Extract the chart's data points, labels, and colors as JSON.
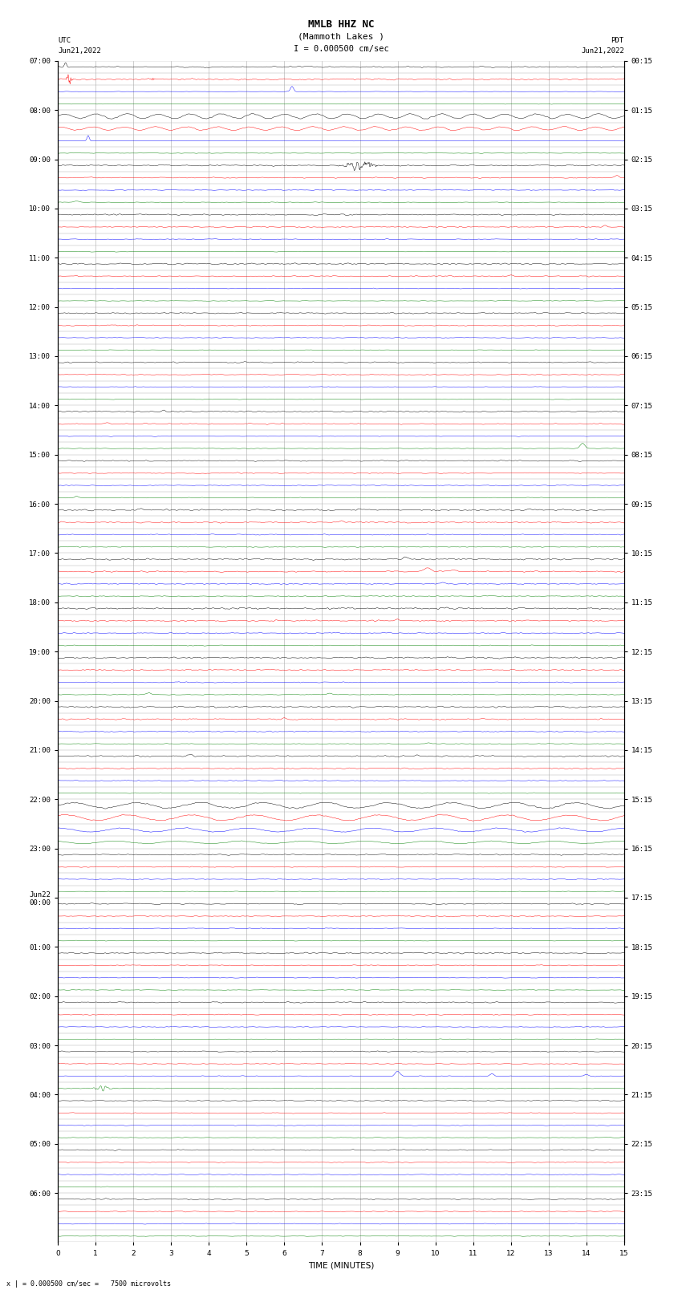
{
  "title_line1": "MMLB HHZ NC",
  "title_line2": "(Mammoth Lakes )",
  "scale_bar": "I = 0.000500 cm/sec",
  "left_label_top": "UTC",
  "left_label_date": "Jun21,2022",
  "right_label_top": "PDT",
  "right_label_date": "Jun21,2022",
  "bottom_note": "x | = 0.000500 cm/sec =   7500 microvolts",
  "x_label": "TIME (MINUTES)",
  "utc_labels": [
    "07:00",
    "08:00",
    "09:00",
    "10:00",
    "11:00",
    "12:00",
    "13:00",
    "14:00",
    "15:00",
    "16:00",
    "17:00",
    "18:00",
    "19:00",
    "20:00",
    "21:00",
    "22:00",
    "23:00",
    "Jun22\n00:00",
    "01:00",
    "02:00",
    "03:00",
    "04:00",
    "05:00",
    "06:00"
  ],
  "pdt_labels": [
    "00:15",
    "01:15",
    "02:15",
    "03:15",
    "04:15",
    "05:15",
    "06:15",
    "07:15",
    "08:15",
    "09:15",
    "10:15",
    "11:15",
    "12:15",
    "13:15",
    "14:15",
    "15:15",
    "16:15",
    "17:15",
    "18:15",
    "19:15",
    "20:15",
    "21:15",
    "22:15",
    "23:15"
  ],
  "n_hours": 24,
  "traces_per_hour": 4,
  "colors_cycle": [
    "black",
    "red",
    "blue",
    "green"
  ],
  "bg_color": "white",
  "grid_color": "#aaaaaa",
  "x_ticks": [
    0,
    1,
    2,
    3,
    4,
    5,
    6,
    7,
    8,
    9,
    10,
    11,
    12,
    13,
    14,
    15
  ],
  "title_fontsize": 8,
  "tick_fontsize": 6.5
}
